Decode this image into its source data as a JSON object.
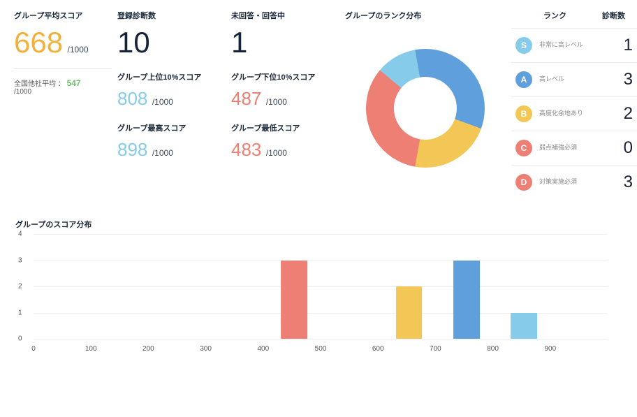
{
  "colors": {
    "text": "#1a2a3a",
    "orange": "#f2b13d",
    "darknavy": "#15243a",
    "cyan": "#86ccea",
    "coral": "#ee7f75",
    "blue": "#5f9fdb",
    "yellow": "#f3c755",
    "green": "#6fbf6f",
    "grid": "#eceef0"
  },
  "kpi": {
    "avg": {
      "title": "グループ平均スコア",
      "value": "668",
      "suffix": "/1000",
      "color": "#f2b13d"
    },
    "count": {
      "title": "登録診断数",
      "value": "10",
      "color": "#15243a"
    },
    "pending": {
      "title": "未回答・回答中",
      "value": "1",
      "color": "#15243a"
    },
    "top10": {
      "title": "グループ上位10%スコア",
      "value": "808",
      "suffix": "/1000",
      "color": "#86ccea"
    },
    "bot10": {
      "title": "グループ下位10%スコア",
      "value": "487",
      "suffix": "/1000",
      "color": "#ee7f75"
    },
    "max": {
      "title": "グループ最高スコア",
      "value": "898",
      "suffix": "/1000",
      "color": "#86ccea"
    },
    "min": {
      "title": "グループ最低スコア",
      "value": "483",
      "suffix": "/1000",
      "color": "#ee7f75"
    },
    "otherAvg": {
      "prefix": "全国他社平均 ：",
      "value": "547",
      "suffix": "/1000"
    }
  },
  "donut": {
    "title": "グループのランク分布",
    "slices": [
      {
        "label": "S",
        "value": 1,
        "color": "#86ccea"
      },
      {
        "label": "A",
        "value": 3,
        "color": "#5f9fdb"
      },
      {
        "label": "B",
        "value": 2,
        "color": "#f3c755"
      },
      {
        "label": "C",
        "value": 0,
        "color": "#ee7f75"
      },
      {
        "label": "D",
        "value": 3,
        "color": "#ee7f75"
      }
    ],
    "start_angle_deg": -50,
    "thickness_ratio": 0.47
  },
  "rank_table": {
    "head_rank": "ランク",
    "head_count": "診断数",
    "rows": [
      {
        "badge": "S",
        "badge_color": "#86ccea",
        "label": "非常に高レベル",
        "count": "1"
      },
      {
        "badge": "A",
        "badge_color": "#5f9fdb",
        "label": "高レベル",
        "count": "3"
      },
      {
        "badge": "B",
        "badge_color": "#f3c755",
        "label": "高度化余地あり",
        "count": "2"
      },
      {
        "badge": "C",
        "badge_color": "#ee7f75",
        "label": "弱点補強必須",
        "count": "0"
      },
      {
        "badge": "D",
        "badge_color": "#ee7f75",
        "label": "対策実施必須",
        "count": "3"
      }
    ]
  },
  "barchart": {
    "title": "グループのスコア分布",
    "ylim": [
      0,
      4
    ],
    "ytick_step": 1,
    "x_labels": [
      "0",
      "100",
      "200",
      "300",
      "400",
      "500",
      "600",
      "700",
      "800",
      "900"
    ],
    "bars": [
      {
        "x": 4,
        "value": 3,
        "color": "#ee7f75"
      },
      {
        "x": 6,
        "value": 2,
        "color": "#f3c755"
      },
      {
        "x": 7,
        "value": 3,
        "color": "#5f9fdb"
      },
      {
        "x": 8,
        "value": 1,
        "color": "#86ccea"
      }
    ],
    "bar_width_ratio": 0.46
  }
}
